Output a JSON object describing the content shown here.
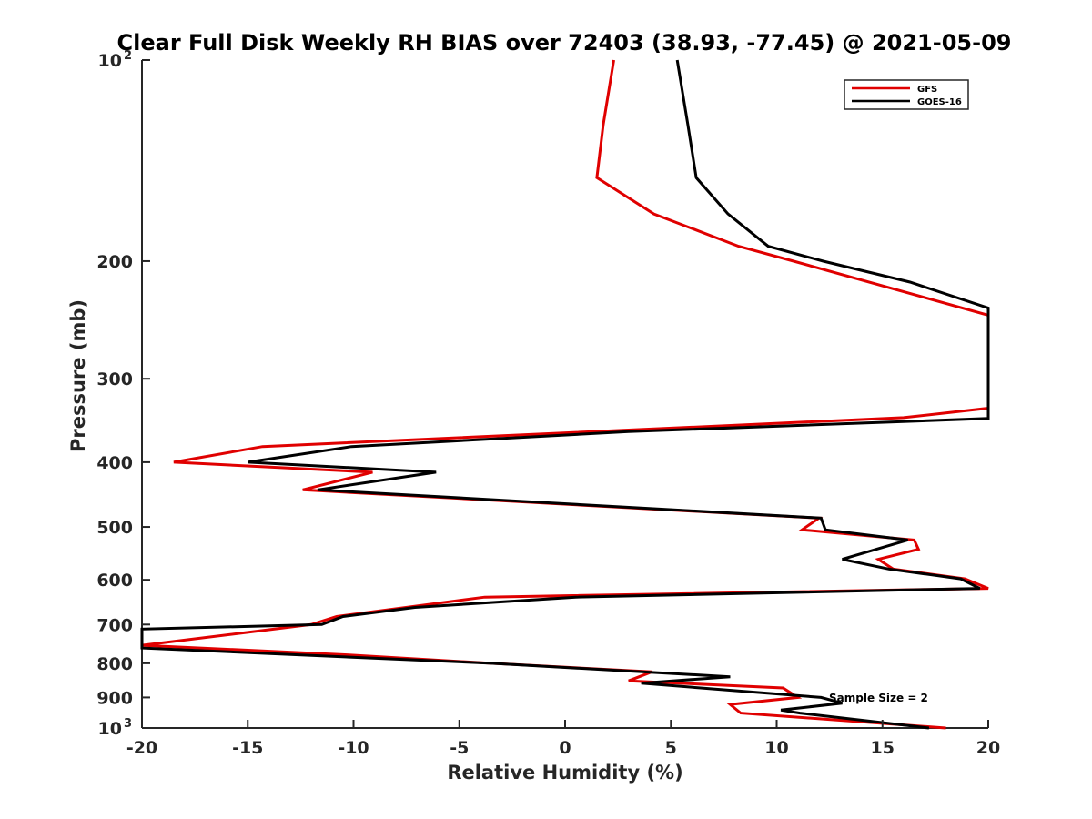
{
  "chart_data": {
    "type": "line",
    "title": "Clear Full Disk Weekly RH BIAS over 72403 (38.93, -77.45) @ 2021-05-09",
    "xlabel": "Relative Humidity (%)",
    "ylabel": "Pressure (mb)",
    "xlim": [
      -20,
      20
    ],
    "ylim": [
      100,
      1000
    ],
    "y_scale": "log",
    "y_reversed": true,
    "x_ticks": [
      "-20",
      "-15",
      "-10",
      "-5",
      "0",
      "5",
      "10",
      "15",
      "20"
    ],
    "y_ticks": [
      {
        "value": 100,
        "base": "10",
        "exp": "2"
      },
      {
        "value": 200,
        "label": "200"
      },
      {
        "value": 300,
        "label": "300"
      },
      {
        "value": 400,
        "label": "400"
      },
      {
        "value": 500,
        "label": "500"
      },
      {
        "value": 600,
        "label": "600"
      },
      {
        "value": 700,
        "label": "700"
      },
      {
        "value": 800,
        "label": "800"
      },
      {
        "value": 900,
        "label": "900"
      },
      {
        "value": 1000,
        "base": "10",
        "exp": "3"
      }
    ],
    "grid": false,
    "legend_position": "top-right",
    "series": [
      {
        "name": "GFS",
        "color": "#e00000",
        "points": [
          [
            2.3,
            100
          ],
          [
            1.8,
            125
          ],
          [
            1.5,
            150
          ],
          [
            4.2,
            170
          ],
          [
            8.2,
            190
          ],
          [
            10.8,
            200
          ],
          [
            20,
            241
          ],
          [
            20,
            332
          ],
          [
            16,
            343
          ],
          [
            -14.3,
            379
          ],
          [
            -18.5,
            400
          ],
          [
            -9.1,
            414
          ],
          [
            -12.4,
            440
          ],
          [
            12,
            485
          ],
          [
            11.2,
            505
          ],
          [
            16.5,
            523
          ],
          [
            16.7,
            540
          ],
          [
            14.8,
            559
          ],
          [
            15.5,
            578
          ],
          [
            18.9,
            598
          ],
          [
            20,
            618
          ],
          [
            -3.8,
            637
          ],
          [
            -10.8,
            681
          ],
          [
            -12,
            700
          ],
          [
            -20,
            752
          ],
          [
            -10.3,
            777
          ],
          [
            -3.5,
            800
          ],
          [
            4.1,
            824
          ],
          [
            3,
            850
          ],
          [
            10.3,
            871
          ],
          [
            11,
            900
          ],
          [
            7.8,
            922
          ],
          [
            8.3,
            950
          ],
          [
            18,
            1000
          ]
        ]
      },
      {
        "name": "GOES-16",
        "color": "#000000",
        "points": [
          [
            5.3,
            100
          ],
          [
            5.8,
            125
          ],
          [
            6.2,
            150
          ],
          [
            7.7,
            170
          ],
          [
            9.6,
            190
          ],
          [
            12.2,
            200
          ],
          [
            16.3,
            215
          ],
          [
            20,
            235
          ],
          [
            20,
            344
          ],
          [
            3,
            360
          ],
          [
            -10.1,
            379
          ],
          [
            -15,
            400
          ],
          [
            -6.1,
            414
          ],
          [
            -11.7,
            440
          ],
          [
            12.1,
            485
          ],
          [
            12.3,
            505
          ],
          [
            16.2,
            523
          ],
          [
            13.1,
            559
          ],
          [
            15.3,
            578
          ],
          [
            18.7,
            598
          ],
          [
            19.6,
            618
          ],
          [
            0.5,
            637
          ],
          [
            -7.1,
            660
          ],
          [
            -10.5,
            681
          ],
          [
            -11.5,
            700
          ],
          [
            -20,
            711
          ],
          [
            -20,
            759
          ],
          [
            -3.5,
            800
          ],
          [
            7.8,
            838
          ],
          [
            3.6,
            857
          ],
          [
            12.1,
            900
          ],
          [
            13.1,
            918
          ],
          [
            10.2,
            940
          ],
          [
            11.1,
            950
          ],
          [
            17.2,
            1000
          ]
        ]
      }
    ],
    "annotation": "Sample Size = 2"
  }
}
